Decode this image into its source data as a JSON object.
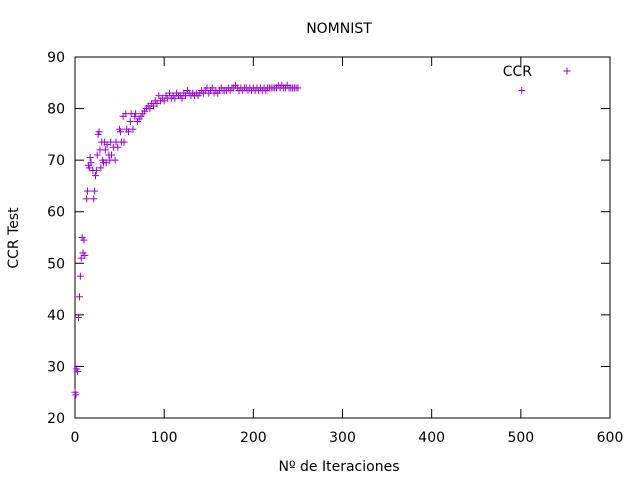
{
  "chart_data": {
    "type": "scatter",
    "title": "NOMNIST",
    "xlabel": "Nº de Iteraciones",
    "ylabel": "CCR Test",
    "xlim": [
      0,
      600
    ],
    "ylim": [
      20,
      90
    ],
    "x_ticks": [
      0,
      100,
      200,
      300,
      400,
      500,
      600
    ],
    "y_ticks": [
      20,
      30,
      40,
      50,
      60,
      70,
      80,
      90
    ],
    "grid": false,
    "legend_position": "top-right",
    "marker": "plus",
    "color": "#9400d3",
    "series": [
      {
        "name": "CCR",
        "points": [
          [
            0,
            25.0
          ],
          [
            1,
            24.5
          ],
          [
            2,
            29.5
          ],
          [
            3,
            29.0
          ],
          [
            4,
            39.5
          ],
          [
            5,
            43.5
          ],
          [
            6,
            47.5
          ],
          [
            7,
            51.0
          ],
          [
            8,
            55.0
          ],
          [
            9,
            52.0
          ],
          [
            10,
            54.5
          ],
          [
            11,
            51.5
          ],
          [
            13,
            62.5
          ],
          [
            14,
            64.0
          ],
          [
            15,
            69.0
          ],
          [
            16,
            68.5
          ],
          [
            17,
            70.5
          ],
          [
            18,
            69.5
          ],
          [
            20,
            68.0
          ],
          [
            21,
            62.5
          ],
          [
            22,
            64.0
          ],
          [
            23,
            67.0
          ],
          [
            24,
            68.0
          ],
          [
            25,
            71.0
          ],
          [
            26,
            75.0
          ],
          [
            27,
            75.5
          ],
          [
            28,
            72.0
          ],
          [
            29,
            68.5
          ],
          [
            30,
            73.5
          ],
          [
            31,
            70.0
          ],
          [
            32,
            69.5
          ],
          [
            33,
            73.5
          ],
          [
            34,
            72.0
          ],
          [
            35,
            69.5
          ],
          [
            36,
            73.0
          ],
          [
            38,
            71.0
          ],
          [
            39,
            70.0
          ],
          [
            40,
            73.5
          ],
          [
            41,
            71.0
          ],
          [
            43,
            72.5
          ],
          [
            45,
            70.0
          ],
          [
            46,
            73.5
          ],
          [
            48,
            72.5
          ],
          [
            50,
            76.0
          ],
          [
            51,
            75.5
          ],
          [
            52,
            73.5
          ],
          [
            54,
            78.5
          ],
          [
            55,
            73.5
          ],
          [
            57,
            79.0
          ],
          [
            58,
            76.0
          ],
          [
            60,
            75.5
          ],
          [
            62,
            77.5
          ],
          [
            63,
            79.0
          ],
          [
            65,
            76.0
          ],
          [
            67,
            78.5
          ],
          [
            68,
            79.0
          ],
          [
            70,
            77.5
          ],
          [
            72,
            78.0
          ],
          [
            74,
            78.5
          ],
          [
            76,
            79.0
          ],
          [
            78,
            79.5
          ],
          [
            80,
            80.0
          ],
          [
            82,
            80.5
          ],
          [
            84,
            80.0
          ],
          [
            86,
            81.0
          ],
          [
            88,
            80.5
          ],
          [
            90,
            81.5
          ],
          [
            92,
            81.0
          ],
          [
            94,
            82.5
          ],
          [
            96,
            81.5
          ],
          [
            98,
            82.0
          ],
          [
            100,
            81.5
          ],
          [
            102,
            82.5
          ],
          [
            104,
            82.0
          ],
          [
            106,
            83.0
          ],
          [
            108,
            82.0
          ],
          [
            110,
            82.5
          ],
          [
            112,
            82.0
          ],
          [
            114,
            83.0
          ],
          [
            116,
            82.5
          ],
          [
            118,
            82.5
          ],
          [
            120,
            82.0
          ],
          [
            122,
            83.0
          ],
          [
            124,
            82.5
          ],
          [
            126,
            83.5
          ],
          [
            128,
            83.0
          ],
          [
            130,
            82.5
          ],
          [
            132,
            83.0
          ],
          [
            134,
            82.5
          ],
          [
            136,
            83.0
          ],
          [
            138,
            82.5
          ],
          [
            140,
            83.0
          ],
          [
            142,
            83.5
          ],
          [
            144,
            83.0
          ],
          [
            146,
            83.5
          ],
          [
            148,
            84.0
          ],
          [
            150,
            83.0
          ],
          [
            152,
            83.5
          ],
          [
            154,
            84.0
          ],
          [
            156,
            83.0
          ],
          [
            158,
            83.5
          ],
          [
            160,
            83.0
          ],
          [
            162,
            83.5
          ],
          [
            164,
            84.0
          ],
          [
            166,
            83.5
          ],
          [
            168,
            83.5
          ],
          [
            170,
            83.5
          ],
          [
            172,
            84.0
          ],
          [
            174,
            83.5
          ],
          [
            176,
            84.0
          ],
          [
            178,
            84.0
          ],
          [
            180,
            84.5
          ],
          [
            182,
            84.0
          ],
          [
            184,
            83.5
          ],
          [
            186,
            84.0
          ],
          [
            188,
            83.5
          ],
          [
            190,
            84.0
          ],
          [
            192,
            84.0
          ],
          [
            194,
            83.5
          ],
          [
            196,
            84.0
          ],
          [
            198,
            83.5
          ],
          [
            200,
            84.0
          ],
          [
            202,
            83.5
          ],
          [
            204,
            84.0
          ],
          [
            206,
            83.5
          ],
          [
            208,
            84.0
          ],
          [
            210,
            83.5
          ],
          [
            212,
            84.0
          ],
          [
            214,
            83.5
          ],
          [
            216,
            84.0
          ],
          [
            218,
            84.0
          ],
          [
            220,
            84.0
          ],
          [
            222,
            84.0
          ],
          [
            224,
            84.0
          ],
          [
            226,
            84.0
          ],
          [
            228,
            84.5
          ],
          [
            230,
            84.0
          ],
          [
            232,
            84.5
          ],
          [
            234,
            84.0
          ],
          [
            236,
            84.0
          ],
          [
            238,
            84.5
          ],
          [
            240,
            84.0
          ],
          [
            242,
            84.0
          ],
          [
            244,
            84.0
          ],
          [
            246,
            84.0
          ],
          [
            248,
            84.0
          ],
          [
            250,
            84.0
          ],
          [
            501,
            83.5
          ]
        ]
      }
    ]
  }
}
